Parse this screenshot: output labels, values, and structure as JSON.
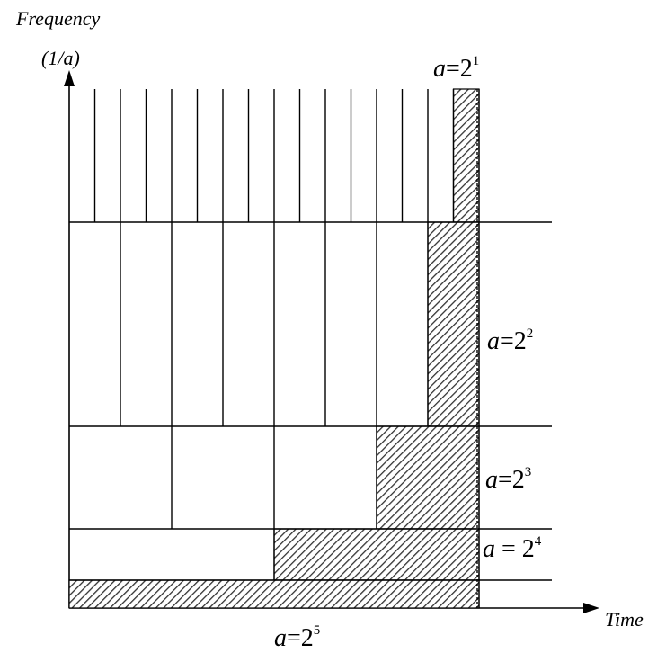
{
  "axes": {
    "y_label_line1": "Frequency",
    "y_label_line2": "(1/a)",
    "x_label": "Time"
  },
  "scales": [
    {
      "var": "a",
      "eq": "=",
      "base": "2",
      "exp": "1"
    },
    {
      "var": "a",
      "eq": "=",
      "base": "2",
      "exp": "2"
    },
    {
      "var": "a",
      "eq": "=",
      "base": "2",
      "exp": "3"
    },
    {
      "var": "a",
      "eq": " = ",
      "base": "2",
      "exp": "4"
    },
    {
      "var": "a",
      "eq": "=",
      "base": "2",
      "exp": "5"
    }
  ]
}
